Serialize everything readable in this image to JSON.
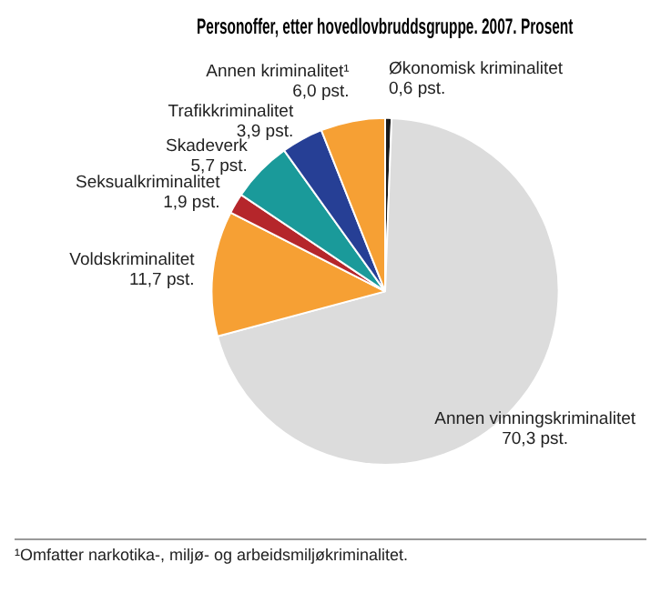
{
  "chart_data": {
    "type": "pie",
    "title": "Personoffer, etter hovedlovbruddsgruppe. 2007. Prosent",
    "categories": [
      "Økonomisk kriminalitet",
      "Annen vinningskriminalitet",
      "Voldskriminalitet",
      "Seksualkriminalitet",
      "Skadeverk",
      "Trafikkriminalitet",
      "Annen kriminalitet¹"
    ],
    "values": [
      0.6,
      70.3,
      11.7,
      1.9,
      5.7,
      3.9,
      6.0
    ],
    "value_labels": [
      "0,6 pst.",
      "70,3 pst.",
      "11,7 pst.",
      "1,9 pst.",
      "5,7 pst.",
      "3,9 pst.",
      "6,0 pst."
    ],
    "colors": [
      "#1a1a1a",
      "#dcdcdc",
      "#f6a034",
      "#b5262b",
      "#1a9a9a",
      "#263f95",
      "#f6a034"
    ],
    "legend": false,
    "annotations": [
      "¹Omfatter narkotika-, miljø- og arbeidsmiljøkriminalitet."
    ]
  }
}
